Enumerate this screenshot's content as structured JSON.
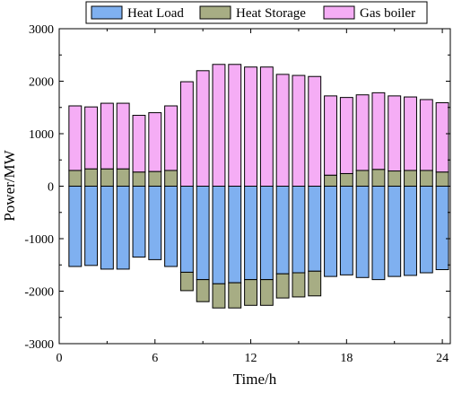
{
  "chart_data": {
    "type": "bar",
    "stacked": true,
    "x": [
      1,
      2,
      3,
      4,
      5,
      6,
      7,
      8,
      9,
      10,
      11,
      12,
      13,
      14,
      15,
      16,
      17,
      18,
      19,
      20,
      21,
      22,
      23,
      24
    ],
    "series": [
      {
        "name": "Heat Load",
        "color": "#7fb0f0",
        "values": [
          -1530,
          -1510,
          -1580,
          -1580,
          -1350,
          -1400,
          -1530,
          -1640,
          -1780,
          -1860,
          -1840,
          -1780,
          -1780,
          -1670,
          -1650,
          -1620,
          -1720,
          -1690,
          -1740,
          -1780,
          -1720,
          -1700,
          -1650,
          -1590
        ]
      },
      {
        "name": "Heat Storage",
        "color": "#a7ad84",
        "values": [
          300,
          330,
          330,
          330,
          270,
          280,
          300,
          -350,
          -420,
          -460,
          -480,
          -490,
          -490,
          -460,
          -460,
          -470,
          210,
          240,
          300,
          320,
          290,
          300,
          300,
          270
        ]
      },
      {
        "name": "Gas boiler",
        "color": "#f5adf5",
        "values": [
          1230,
          1180,
          1250,
          1250,
          1080,
          1120,
          1230,
          1990,
          2200,
          2320,
          2320,
          2270,
          2270,
          2130,
          2110,
          2090,
          1510,
          1450,
          1440,
          1460,
          1430,
          1400,
          1350,
          1320
        ]
      }
    ],
    "xlabel": "Time/h",
    "ylabel": "Power/MW",
    "xlim": [
      0,
      24.5
    ],
    "ylim": [
      -3000,
      3000
    ],
    "xticks": [
      0,
      6,
      12,
      18,
      24
    ],
    "yticks": [
      -3000,
      -2000,
      -1000,
      0,
      1000,
      2000,
      3000
    ],
    "grid": false,
    "legend_position": "top"
  }
}
